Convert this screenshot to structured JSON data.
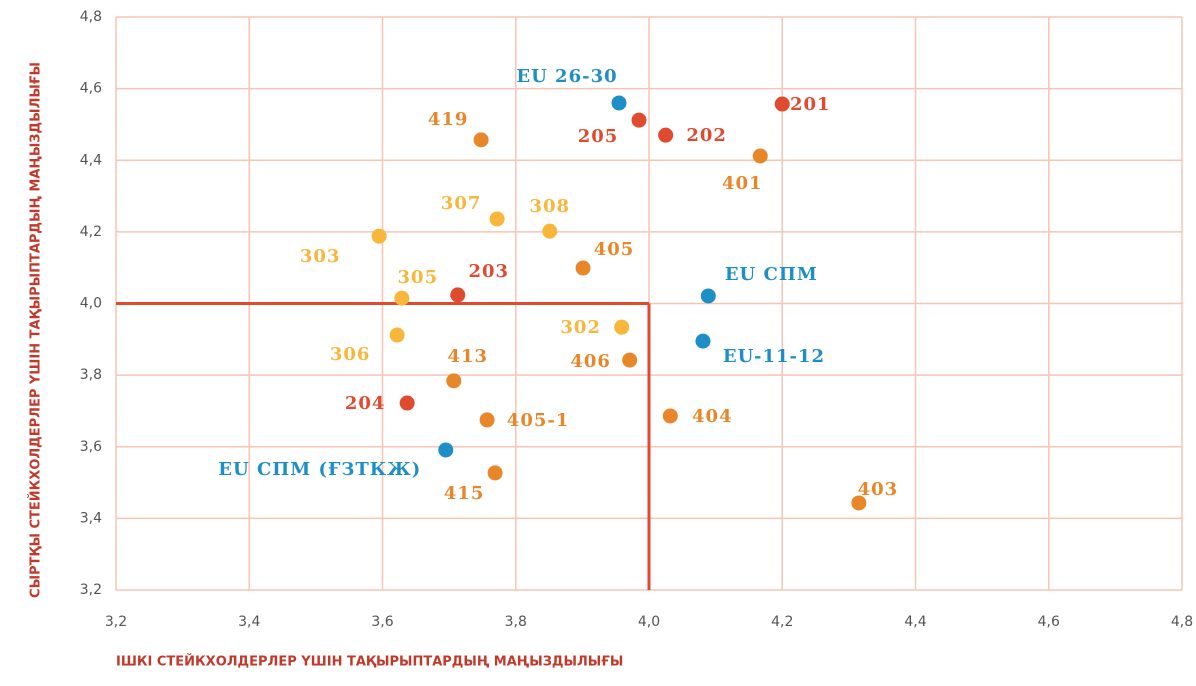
{
  "chart_data": {
    "type": "scatter",
    "xlabel": "ІШКІ СТЕЙКХОЛДЕРЛЕР ҮШІН ТАҚЫРЫПТАРДЫҢ МАҢЫЗДЫЛЫҒЫ",
    "ylabel": "СЫРТҚЫ СТЕЙКХОЛДЕРЛЕР ҮШІН ТАҚЫРЫПТАРДЫҢ МАҢЫЗДЫЛЫҒЫ",
    "xlim": [
      3.2,
      4.8
    ],
    "ylim": [
      3.2,
      4.8
    ],
    "xticks": [
      {
        "value": 3.2,
        "label": "3,2"
      },
      {
        "value": 3.4,
        "label": "3,4"
      },
      {
        "value": 3.6,
        "label": "3,6"
      },
      {
        "value": 3.8,
        "label": "3,8"
      },
      {
        "value": 4.0,
        "label": "4,0"
      },
      {
        "value": 4.2,
        "label": "4,2"
      },
      {
        "value": 4.4,
        "label": "4,4"
      },
      {
        "value": 4.6,
        "label": "4,6"
      },
      {
        "value": 4.8,
        "label": "4,8"
      }
    ],
    "yticks": [
      {
        "value": 3.2,
        "label": "3,2"
      },
      {
        "value": 3.4,
        "label": "3,4"
      },
      {
        "value": 3.6,
        "label": "3,6"
      },
      {
        "value": 3.8,
        "label": "3,8"
      },
      {
        "value": 4.0,
        "label": "4,0"
      },
      {
        "value": 4.2,
        "label": "4,2"
      },
      {
        "value": 4.4,
        "label": "4,4"
      },
      {
        "value": 4.6,
        "label": "4,6"
      },
      {
        "value": 4.8,
        "label": "4,8"
      }
    ],
    "grid": true,
    "threshold": {
      "x": 4.0,
      "y": 4.0,
      "color": "#e04a2f"
    },
    "points": [
      {
        "label": "EU 26-30",
        "x": 3.955,
        "y": 4.56,
        "color": "#1e8fc6"
      },
      {
        "label": "205",
        "x": 3.985,
        "y": 4.512,
        "color": "#e04a2f"
      },
      {
        "label": "202",
        "x": 4.025,
        "y": 4.47,
        "color": "#e04a2f"
      },
      {
        "label": "201",
        "x": 4.2,
        "y": 4.557,
        "color": "#e04a2f"
      },
      {
        "label": "419",
        "x": 3.748,
        "y": 4.457,
        "color": "#e8862a"
      },
      {
        "label": "401",
        "x": 4.167,
        "y": 4.412,
        "color": "#e8862a"
      },
      {
        "label": "307",
        "x": 3.772,
        "y": 4.236,
        "color": "#f8b63a"
      },
      {
        "label": "308",
        "x": 3.851,
        "y": 4.202,
        "color": "#f8b63a"
      },
      {
        "label": "303",
        "x": 3.595,
        "y": 4.188,
        "color": "#f8b63a"
      },
      {
        "label": "405",
        "x": 3.901,
        "y": 4.099,
        "color": "#e8862a"
      },
      {
        "label": "305",
        "x": 3.629,
        "y": 4.015,
        "color": "#f8b63a"
      },
      {
        "label": "203",
        "x": 3.713,
        "y": 4.024,
        "color": "#e04a2f"
      },
      {
        "label": "EU СПМ",
        "x": 4.089,
        "y": 4.021,
        "color": "#1e8fc6"
      },
      {
        "label": "302",
        "x": 3.959,
        "y": 3.934,
        "color": "#f8b63a"
      },
      {
        "label": "306",
        "x": 3.622,
        "y": 3.912,
        "color": "#f8b63a"
      },
      {
        "label": "EU-11-12",
        "x": 4.081,
        "y": 3.895,
        "color": "#1e8fc6"
      },
      {
        "label": "406",
        "x": 3.971,
        "y": 3.842,
        "color": "#e8862a"
      },
      {
        "label": "413",
        "x": 3.707,
        "y": 3.784,
        "color": "#e8862a"
      },
      {
        "label": "204",
        "x": 3.637,
        "y": 3.722,
        "color": "#e04a2f"
      },
      {
        "label": "405-1",
        "x": 3.757,
        "y": 3.675,
        "color": "#e8862a"
      },
      {
        "label": "404",
        "x": 4.032,
        "y": 3.686,
        "color": "#e8862a"
      },
      {
        "label": "EU СПМ (ҒЗТКЖ)",
        "x": 3.695,
        "y": 3.591,
        "color": "#1e8fc6"
      },
      {
        "label": "415",
        "x": 3.769,
        "y": 3.527,
        "color": "#e8862a"
      },
      {
        "label": "403",
        "x": 4.315,
        "y": 3.443,
        "color": "#e8862a"
      }
    ]
  }
}
